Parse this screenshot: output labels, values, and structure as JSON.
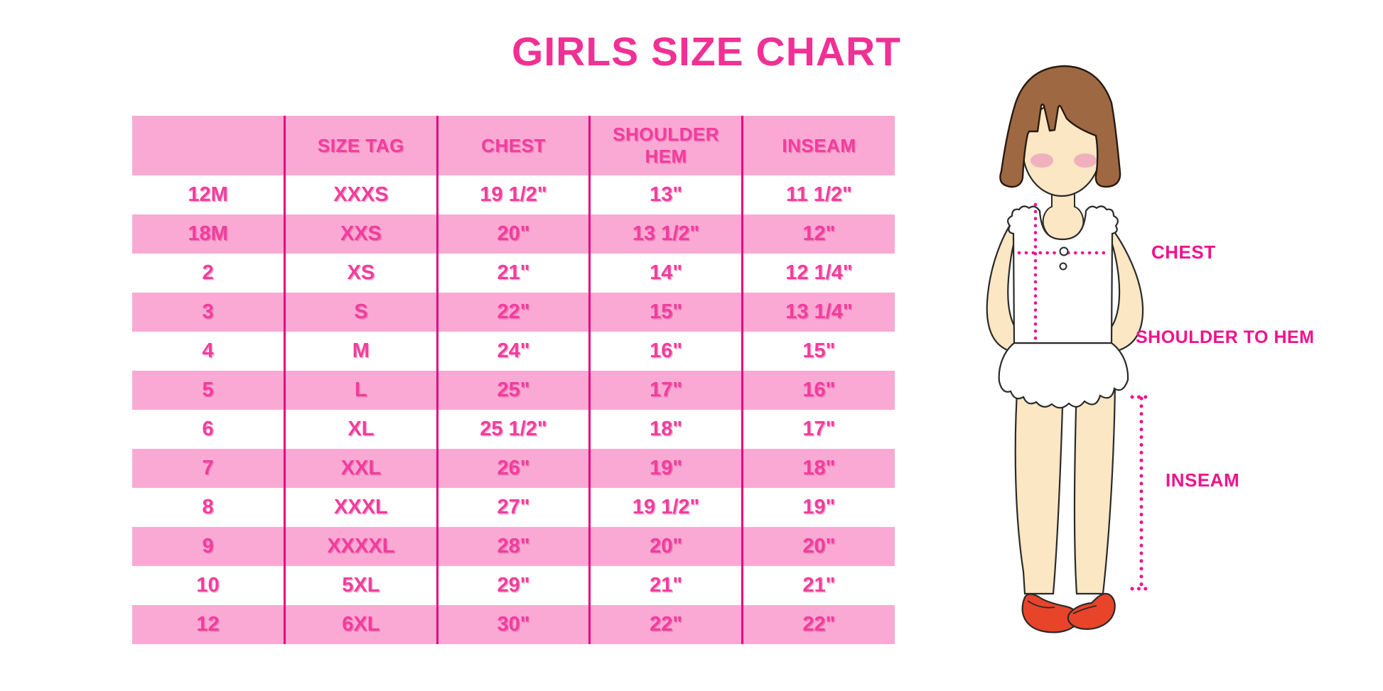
{
  "title": "GIRLS SIZE CHART",
  "chart_data": {
    "type": "table",
    "title": "GIRLS SIZE CHART",
    "columns": [
      "",
      "SIZE TAG",
      "CHEST",
      "SHOULDER HEM",
      "INSEAM"
    ],
    "rows": [
      [
        "12M",
        "XXXS",
        "19 1/2\"",
        "13\"",
        "11 1/2\""
      ],
      [
        "18M",
        "XXS",
        "20\"",
        "13 1/2\"",
        "12\""
      ],
      [
        "2",
        "XS",
        "21\"",
        "14\"",
        "12 1/4\""
      ],
      [
        "3",
        "S",
        "22\"",
        "15\"",
        "13 1/4\""
      ],
      [
        "4",
        "M",
        "24\"",
        "16\"",
        "15\""
      ],
      [
        "5",
        "L",
        "25\"",
        "17\"",
        "16\""
      ],
      [
        "6",
        "XL",
        "25 1/2\"",
        "18\"",
        "17\""
      ],
      [
        "7",
        "XXL",
        "26\"",
        "19\"",
        "18\""
      ],
      [
        "8",
        "XXXL",
        "27\"",
        "19 1/2\"",
        "19\""
      ],
      [
        "9",
        "XXXXL",
        "28\"",
        "20\"",
        "20\""
      ],
      [
        "10",
        "5XL",
        "29\"",
        "21\"",
        "21\""
      ],
      [
        "12",
        "6XL",
        "30\"",
        "22\"",
        "22\""
      ]
    ],
    "figure_annotations": [
      "CHEST",
      "SHOULDER TO HEM",
      "INSEAM"
    ]
  },
  "figure": {
    "chest_label": "CHEST",
    "shoulder_to_hem_label": "SHOULDER TO HEM",
    "inseam_label": "INSEAM"
  },
  "colors": {
    "row_pink": "#F9A9D4",
    "divider_magenta": "#E2077F",
    "table_text_pink": "#F13D9C",
    "title_pink": "#F03095",
    "label_magenta": "#F0128C",
    "dotted_line_magenta": "#F0128C",
    "hair_brown": "#9E6942",
    "skin": "#FBE7C3",
    "blush": "#EFA6BD",
    "shoe_red": "#E8442A"
  }
}
